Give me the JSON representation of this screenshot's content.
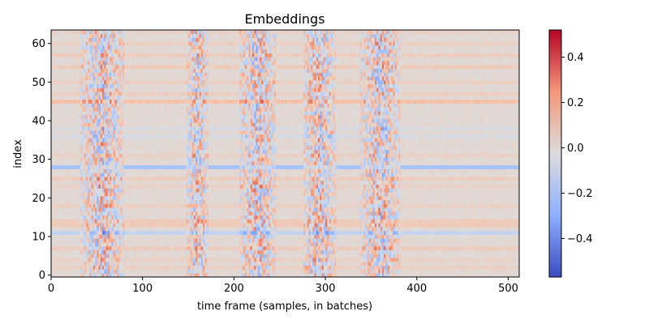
{
  "chart_data": {
    "type": "heatmap",
    "title": "Embeddings",
    "xlabel": "time frame (samples, in batches)",
    "ylabel": "index",
    "xlim": [
      0,
      512
    ],
    "ylim": [
      0,
      64
    ],
    "x_ticks": [
      0,
      100,
      200,
      300,
      400,
      500
    ],
    "x_tick_labels": [
      "0",
      "100",
      "200",
      "300",
      "400",
      "500"
    ],
    "y_ticks": [
      0,
      10,
      20,
      30,
      40,
      50,
      60
    ],
    "y_tick_labels": [
      "0",
      "10",
      "20",
      "30",
      "40",
      "50",
      "60"
    ],
    "colormap": "coolwarm",
    "colorbar": {
      "vmin": -0.57,
      "vmax": 0.52,
      "ticks": [
        -0.4,
        -0.2,
        0.0,
        0.2,
        0.4
      ],
      "tick_labels": [
        "−0.4",
        "−0.2",
        "0.0",
        "0.2",
        "0.4"
      ]
    },
    "n_rows": 64,
    "n_cols": 512,
    "active_segments": [
      [
        32,
        78
      ],
      [
        148,
        170
      ],
      [
        205,
        245
      ],
      [
        275,
        310
      ],
      [
        338,
        380
      ]
    ],
    "row_baseline": {
      "11": -0.12,
      "28": -0.22,
      "2": 0.05,
      "4": 0.04,
      "7": 0.06,
      "13": 0.08,
      "14": 0.07,
      "18": 0.05,
      "23": 0.04,
      "25": 0.06,
      "31": 0.04,
      "36": -0.05,
      "38": -0.04,
      "45": 0.12,
      "47": 0.05,
      "50": 0.05,
      "54": 0.07,
      "57": 0.06,
      "60": 0.05,
      "63": 0.03
    },
    "grid": false
  }
}
